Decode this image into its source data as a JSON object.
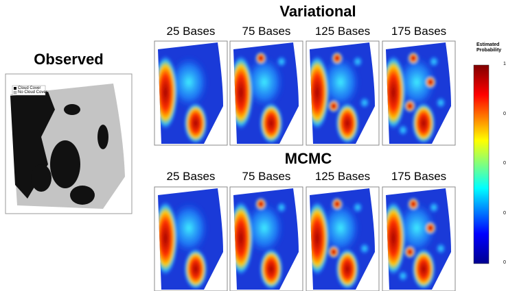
{
  "observed": {
    "title": "Observed",
    "legend": [
      "Cloud Cover",
      "No Cloud Cover"
    ]
  },
  "variational": {
    "title": "Variational",
    "columns": [
      "25 Bases",
      "75 Bases",
      "125 Bases",
      "175 Bases"
    ]
  },
  "mcmc": {
    "title": "MCMC",
    "columns": [
      "25 Bases",
      "75 Bases",
      "125 Bases",
      "175 Bases"
    ]
  },
  "colorbar": {
    "title": "Estimated Probability",
    "ticks": [
      "1",
      "0.7",
      "0.5",
      "0.2",
      "0"
    ]
  }
}
